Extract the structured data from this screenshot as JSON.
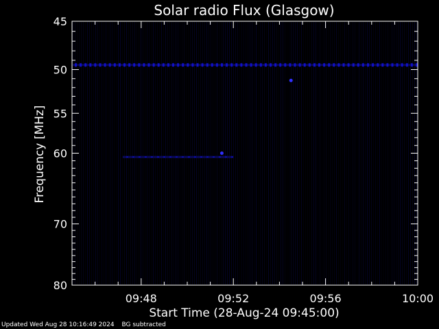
{
  "chart_data": {
    "type": "heatmap",
    "title": "Solar radio Flux (Glasgow)",
    "xlabel": "Start Time (28-Aug-24 09:45:00)",
    "ylabel": "Frequency [MHz]",
    "x_tick_labels": [
      "09:48",
      "09:52",
      "09:56",
      "10:00"
    ],
    "x_ticks_minutes": [
      48,
      52,
      56,
      60
    ],
    "xlim_minutes": [
      45,
      60
    ],
    "y_tick_labels": [
      "45",
      "50",
      "55",
      "60",
      "70",
      "80"
    ],
    "y_ticks": [
      45,
      50,
      55,
      60,
      70,
      80
    ],
    "ylim": [
      45,
      80
    ],
    "y_scale": "log",
    "y_direction": "inverted",
    "colormap": [
      "#000000",
      "#0a0a5a",
      "#1010c8",
      "#3030ff"
    ],
    "features": [
      {
        "kind": "constant-frequency interference band",
        "frequency_mhz": 49.5,
        "from_minute": 45,
        "to_minute": 60
      },
      {
        "kind": "weak drifting emission",
        "frequency_mhz": 60.5,
        "from_minute": 47.2,
        "to_minute": 52
      },
      {
        "kind": "bright spot",
        "frequency_mhz": 51.2,
        "minute": 54.5
      },
      {
        "kind": "bright spot",
        "frequency_mhz": 60.0,
        "minute": 51.5
      }
    ]
  },
  "footer": {
    "updated": "Updated Wed Aug 28 10:16:49 2024",
    "note": "BG subtracted"
  }
}
